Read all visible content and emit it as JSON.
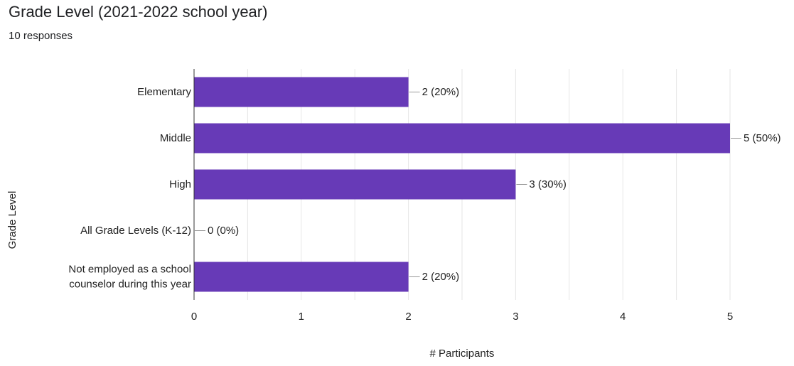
{
  "header": {
    "title": "Grade Level (2021-2022 school year)",
    "subtitle": "10 responses"
  },
  "colors": {
    "bar": "#673ab7",
    "grid": "#e6e6e6",
    "axis": "#333333",
    "leader": "#999999"
  },
  "chart_data": {
    "type": "bar",
    "orientation": "horizontal",
    "title": "Grade Level (2021-2022 school year)",
    "subtitle": "10 responses",
    "xlabel": "# Participants",
    "ylabel": "Grade Level",
    "categories": [
      [
        "Elementary"
      ],
      [
        "Middle"
      ],
      [
        "High"
      ],
      [
        "All Grade Levels (K-12)"
      ],
      [
        "Not employed as a school",
        "counselor during this year"
      ]
    ],
    "values": [
      2,
      5,
      3,
      0,
      2
    ],
    "data_labels": [
      "2 (20%)",
      "5 (50%)",
      "3 (30%)",
      "0 (0%)",
      "2 (20%)"
    ],
    "xlim": [
      0,
      5
    ],
    "xticks": [
      0,
      1,
      2,
      3,
      4,
      5
    ],
    "grid": true,
    "legend": "none"
  }
}
